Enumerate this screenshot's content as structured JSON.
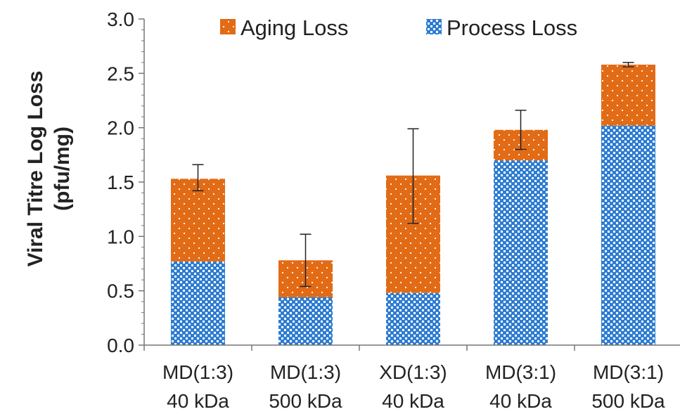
{
  "chart_data": {
    "type": "bar",
    "stacked": true,
    "title": "",
    "xlabel": "",
    "ylabel": [
      "Viral Titre Log Loss",
      "(pfu/mg)"
    ],
    "ylim": [
      0,
      3.0
    ],
    "yticks": [
      "0.0",
      "0.5",
      "1.0",
      "1.5",
      "2.0",
      "2.5",
      "3.0"
    ],
    "grid": false,
    "legend_position": "top",
    "categories": [
      [
        "MD(1:3)",
        "40 kDa"
      ],
      [
        "MD(1:3)",
        "500 kDa"
      ],
      [
        "XD(1:3)",
        "40 kDa"
      ],
      [
        "MD(3:1)",
        "40 kDa"
      ],
      [
        "MD(3:1)",
        "500 kDa"
      ]
    ],
    "series": [
      {
        "name": "Process Loss",
        "color": "#2F7DD1",
        "pattern": "checker",
        "values": [
          0.77,
          0.44,
          0.48,
          1.7,
          2.02
        ]
      },
      {
        "name": "Aging Loss",
        "color": "#E26B16",
        "pattern": "dots",
        "values": [
          0.76,
          0.34,
          1.08,
          0.28,
          0.56
        ]
      }
    ],
    "legend_order": [
      "Aging Loss",
      "Process Loss"
    ],
    "error_bars": {
      "total": [
        1.53,
        0.78,
        1.56,
        1.98,
        2.58
      ],
      "low": [
        1.42,
        0.54,
        1.12,
        1.8,
        2.56
      ],
      "high": [
        1.66,
        1.02,
        1.99,
        2.16,
        2.6
      ]
    }
  }
}
